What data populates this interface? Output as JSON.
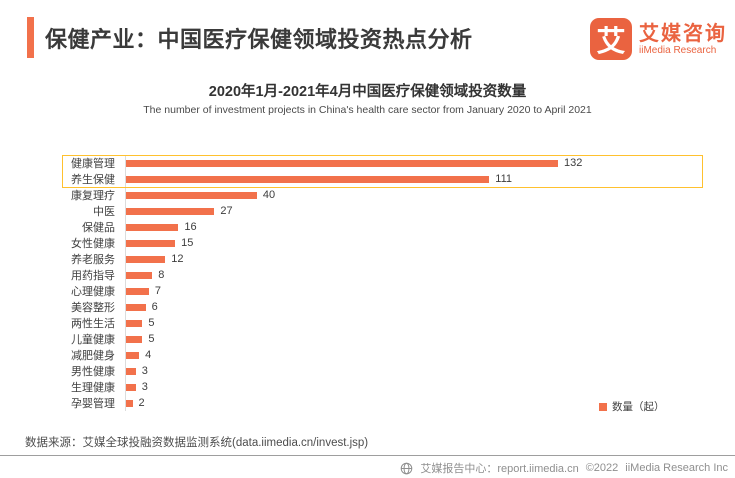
{
  "header": {
    "title": "保健产业：中国医疗保健领域投资热点分析",
    "logo": {
      "icon_char": "艾",
      "brand_cn": "艾媒咨询",
      "brand_en": "iiMedia Research"
    }
  },
  "chart": {
    "title": "2020年1月-2021年4月中国医疗保健领域投资数量",
    "subtitle": "The number of investment projects in China's health care sector from January 2020 to April 2021"
  },
  "chart_data": {
    "type": "bar",
    "orientation": "horizontal",
    "title": "2020年1月-2021年4月中国医疗保健领域投资数量",
    "subtitle": "The number of investment projects in China's health care sector from January 2020 to April 2021",
    "categories": [
      "健康管理",
      "养生保健",
      "康复理疗",
      "中医",
      "保健品",
      "女性健康",
      "养老服务",
      "用药指导",
      "心理健康",
      "美容整形",
      "两性生活",
      "儿童健康",
      "减肥健身",
      "男性健康",
      "生理健康",
      "孕婴管理"
    ],
    "values": [
      132,
      111,
      40,
      27,
      16,
      15,
      12,
      8,
      7,
      6,
      5,
      5,
      4,
      3,
      3,
      2
    ],
    "value_labels": true,
    "legend": [
      "数量（起）"
    ],
    "legend_position": "bottom-right",
    "highlighted_categories": [
      "健康管理",
      "养生保健"
    ],
    "bar_color": "#F2714B",
    "highlight_border_color": "#FFC12E",
    "grid": false
  },
  "footer": {
    "source": "数据来源：艾媒全球投融资数据监测系统(data.iimedia.cn/invest.jsp)",
    "report_center": "艾媒报告中心：report.iimedia.cn",
    "copyright": "©2022",
    "company": "iiMedia Research  Inc"
  }
}
